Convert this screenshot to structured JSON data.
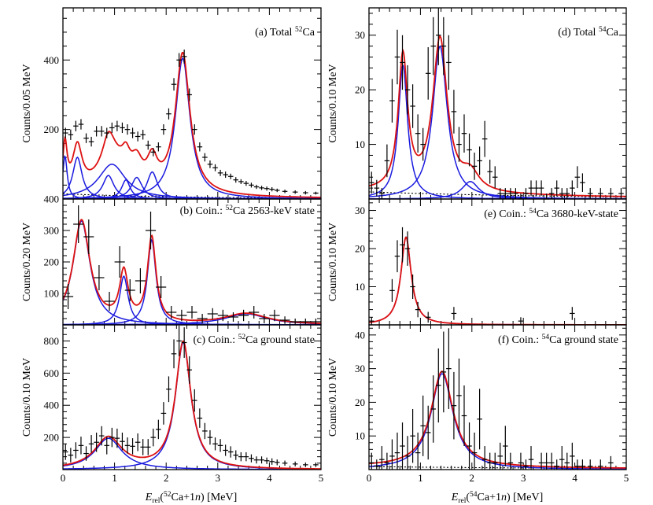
{
  "figure": {
    "x_axis_left": "E_rel(52Ca+1n) [MeV]",
    "x_axis_right": "E_rel(54Ca+1n) [MeV]",
    "x_axis_left_parts": [
      "E",
      "rel",
      "(",
      "52",
      "Ca+1",
      "n",
      ") [MeV]"
    ],
    "x_axis_right_parts": [
      "E",
      "rel",
      "(",
      "54",
      "Ca+1",
      "n",
      ") [MeV]"
    ],
    "colors": {
      "total_fit": "#dd1111",
      "components": "#1a1adf",
      "data": "#000000",
      "background": "#000000"
    }
  },
  "chart_data": [
    {
      "id": "a",
      "type": "scatter",
      "title": "(a) Total 52Ca",
      "title_parts": [
        "(a) Total ",
        "52",
        "Ca"
      ],
      "ylabel": "Counts/0.05 MeV",
      "xlim": [
        0,
        5
      ],
      "ylim": [
        0,
        550
      ],
      "yticks": [
        200,
        400
      ],
      "xticks": [],
      "x": [
        0.05,
        0.15,
        0.25,
        0.35,
        0.45,
        0.55,
        0.65,
        0.75,
        0.85,
        0.95,
        1.05,
        1.15,
        1.25,
        1.35,
        1.45,
        1.55,
        1.65,
        1.75,
        1.85,
        1.95,
        2.05,
        2.15,
        2.25,
        2.35,
        2.45,
        2.55,
        2.65,
        2.75,
        2.85,
        2.95,
        3.05,
        3.15,
        3.25,
        3.35,
        3.45,
        3.55,
        3.65,
        3.75,
        3.85,
        3.95,
        4.05,
        4.15,
        4.3,
        4.5,
        4.7,
        4.9
      ],
      "y": [
        190,
        185,
        210,
        215,
        175,
        165,
        195,
        195,
        190,
        205,
        210,
        205,
        200,
        190,
        180,
        185,
        155,
        135,
        150,
        200,
        245,
        330,
        400,
        410,
        300,
        200,
        150,
        120,
        100,
        90,
        75,
        70,
        65,
        55,
        50,
        45,
        40,
        35,
        32,
        30,
        28,
        25,
        22,
        20,
        18,
        17
      ],
      "yerr": [
        15,
        15,
        15,
        15,
        14,
        14,
        15,
        15,
        15,
        15,
        15,
        15,
        15,
        15,
        14,
        14,
        13,
        12,
        13,
        15,
        16,
        18,
        20,
        20,
        18,
        15,
        13,
        12,
        11,
        10,
        9,
        9,
        8,
        8,
        7,
        7,
        7,
        6,
        6,
        6,
        6,
        5,
        5,
        5,
        5,
        4
      ]
    },
    {
      "id": "b",
      "type": "scatter",
      "title": "(b) Coin.: 52Ca 2563-keV state",
      "title_parts": [
        "(b) Coin.: ",
        "52",
        "Ca 2563-keV state"
      ],
      "ylabel": "Counts/0.20 MeV",
      "xlim": [
        0,
        5
      ],
      "ylim": [
        0,
        400
      ],
      "yticks": [
        100,
        200,
        300,
        400
      ],
      "xticks": [],
      "x": [
        0.1,
        0.3,
        0.5,
        0.7,
        0.9,
        1.1,
        1.3,
        1.5,
        1.7,
        1.9,
        2.1,
        2.3,
        2.5,
        2.7,
        2.9,
        3.1,
        3.3,
        3.5,
        3.7,
        3.9,
        4.1,
        4.3,
        4.5,
        4.7,
        4.9
      ],
      "y": [
        90,
        320,
        280,
        150,
        75,
        200,
        110,
        140,
        300,
        120,
        40,
        30,
        40,
        20,
        35,
        30,
        25,
        30,
        40,
        20,
        30,
        15,
        10,
        10,
        10
      ],
      "yerr": [
        40,
        60,
        55,
        40,
        30,
        50,
        35,
        40,
        60,
        35,
        20,
        18,
        20,
        15,
        18,
        18,
        15,
        18,
        20,
        15,
        18,
        12,
        10,
        10,
        10
      ]
    },
    {
      "id": "c",
      "type": "scatter",
      "title": "(c) Coin.: 52Ca ground state",
      "title_parts": [
        "(c) Coin.: ",
        "52",
        "Ca ground state"
      ],
      "ylabel": "Counts/0.10 MeV",
      "xlim": [
        0,
        5
      ],
      "ylim": [
        0,
        900
      ],
      "yticks": [
        200,
        400,
        600,
        800
      ],
      "xticks": [
        0,
        1,
        2,
        3,
        4,
        5
      ],
      "x": [
        0.05,
        0.15,
        0.25,
        0.35,
        0.45,
        0.55,
        0.65,
        0.75,
        0.85,
        0.95,
        1.05,
        1.15,
        1.25,
        1.35,
        1.45,
        1.55,
        1.65,
        1.75,
        1.85,
        1.95,
        2.05,
        2.15,
        2.25,
        2.35,
        2.45,
        2.55,
        2.65,
        2.75,
        2.85,
        2.95,
        3.05,
        3.15,
        3.25,
        3.35,
        3.45,
        3.55,
        3.65,
        3.75,
        3.85,
        3.95,
        4.05,
        4.15,
        4.3,
        4.5,
        4.7,
        4.9
      ],
      "y": [
        110,
        90,
        120,
        150,
        100,
        160,
        170,
        210,
        150,
        200,
        195,
        175,
        150,
        145,
        170,
        140,
        140,
        200,
        250,
        350,
        500,
        720,
        800,
        790,
        620,
        430,
        320,
        240,
        200,
        160,
        150,
        120,
        110,
        90,
        80,
        80,
        70,
        60,
        60,
        55,
        50,
        45,
        40,
        35,
        30,
        30
      ],
      "yerr": [
        50,
        45,
        50,
        55,
        45,
        55,
        60,
        60,
        55,
        60,
        60,
        55,
        50,
        50,
        55,
        50,
        50,
        55,
        60,
        70,
        80,
        90,
        95,
        95,
        85,
        70,
        60,
        50,
        45,
        40,
        40,
        35,
        35,
        30,
        28,
        28,
        25,
        22,
        22,
        20,
        20,
        18,
        16,
        15,
        14,
        14
      ]
    },
    {
      "id": "d",
      "type": "scatter",
      "title": "(d) Total 54Ca",
      "title_parts": [
        "(d) Total ",
        "54",
        "Ca"
      ],
      "ylabel": "Counts/0.10 MeV",
      "xlim": [
        0,
        5
      ],
      "ylim": [
        0,
        35
      ],
      "yticks": [
        10,
        20,
        30
      ],
      "xticks": [],
      "x": [
        0.05,
        0.15,
        0.25,
        0.35,
        0.45,
        0.55,
        0.65,
        0.75,
        0.85,
        0.95,
        1.05,
        1.15,
        1.25,
        1.35,
        1.45,
        1.55,
        1.65,
        1.75,
        1.85,
        1.95,
        2.05,
        2.15,
        2.25,
        2.35,
        2.45,
        2.55,
        2.65,
        2.75,
        2.85,
        2.95,
        3.05,
        3.15,
        3.25,
        3.35,
        3.45,
        3.55,
        3.65,
        3.75,
        3.85,
        3.95,
        4.05,
        4.15,
        4.3,
        4.5,
        4.7,
        4.9
      ],
      "y": [
        3,
        2,
        1,
        7,
        18,
        26,
        25,
        20,
        17,
        12,
        10,
        23,
        28,
        30,
        28,
        25,
        16,
        10,
        12,
        9,
        6,
        7,
        11,
        5,
        4,
        1,
        1,
        1,
        1,
        0,
        1,
        2,
        2,
        2,
        0,
        1,
        2,
        1,
        1,
        2,
        4,
        3,
        1,
        1,
        1,
        1
      ],
      "yerr": [
        2,
        1.5,
        1,
        3,
        4,
        5,
        5,
        4.5,
        4,
        3.5,
        3,
        4.8,
        5.3,
        5.5,
        5.3,
        5,
        4,
        3.2,
        3.5,
        3,
        2.5,
        2.6,
        3.3,
        2.2,
        2,
        1,
        1,
        1,
        1,
        1,
        1,
        1.4,
        1.4,
        1.4,
        1,
        1,
        1.4,
        1,
        1,
        1.4,
        2,
        1.7,
        1,
        1,
        1,
        1
      ]
    },
    {
      "id": "e",
      "type": "scatter",
      "title": "(e) Coin.: 54Ca 3680-keV-state",
      "title_parts": [
        "(e) Coin.: ",
        "54",
        "Ca 3680-keV-state"
      ],
      "ylabel": "Counts/0.10 MeV",
      "xlim": [
        0,
        5
      ],
      "ylim": [
        0,
        33
      ],
      "yticks": [
        10,
        20,
        30
      ],
      "xticks": [],
      "x": [
        0.05,
        0.45,
        0.55,
        0.65,
        0.75,
        0.85,
        0.95,
        1.15,
        1.65,
        2.95,
        3.95
      ],
      "y": [
        1,
        9,
        18,
        21,
        20,
        10,
        4,
        2,
        3,
        1,
        3
      ],
      "yerr": [
        1,
        3,
        4.2,
        4.6,
        4.5,
        3.2,
        2,
        1.4,
        1.7,
        1,
        1.7
      ]
    },
    {
      "id": "f",
      "type": "scatter",
      "title": "(f) Coin.: 54Ca ground state",
      "title_parts": [
        "(f) Coin.: ",
        "54",
        "Ca ground state"
      ],
      "ylabel": "Counts/0.10 MeV",
      "xlim": [
        0,
        5
      ],
      "ylim": [
        0,
        43
      ],
      "yticks": [
        10,
        20,
        30,
        40
      ],
      "xticks": [
        0,
        1,
        2,
        3,
        4,
        5
      ],
      "x": [
        0.05,
        0.15,
        0.25,
        0.35,
        0.45,
        0.55,
        0.65,
        0.75,
        0.85,
        0.95,
        1.05,
        1.15,
        1.25,
        1.35,
        1.45,
        1.55,
        1.65,
        1.75,
        1.85,
        1.95,
        2.05,
        2.15,
        2.25,
        2.35,
        2.45,
        2.55,
        2.65,
        2.75,
        2.95,
        3.05,
        3.15,
        3.35,
        3.45,
        3.55,
        3.65,
        3.75,
        3.85,
        3.95,
        4.05,
        4.15,
        4.3,
        4.5,
        4.7
      ],
      "y": [
        2,
        1,
        3,
        2,
        4,
        5,
        7,
        4,
        10,
        5,
        13,
        11,
        18,
        25,
        29,
        30,
        19,
        22,
        16,
        7,
        5,
        15,
        3,
        2,
        2,
        4,
        7,
        2,
        2,
        1,
        3,
        2,
        2,
        2,
        1,
        3,
        2,
        4,
        1,
        1,
        1,
        1,
        2
      ],
      "yerr": [
        3,
        2,
        4,
        3,
        5,
        6,
        7,
        6,
        8,
        6,
        9,
        8,
        10,
        11,
        12,
        12,
        10,
        11,
        9,
        7,
        6,
        9,
        4,
        3,
        3,
        4,
        6,
        3,
        3,
        2,
        4,
        3,
        3,
        3,
        2,
        4,
        3,
        4,
        2,
        2,
        2,
        2,
        2
      ]
    }
  ]
}
